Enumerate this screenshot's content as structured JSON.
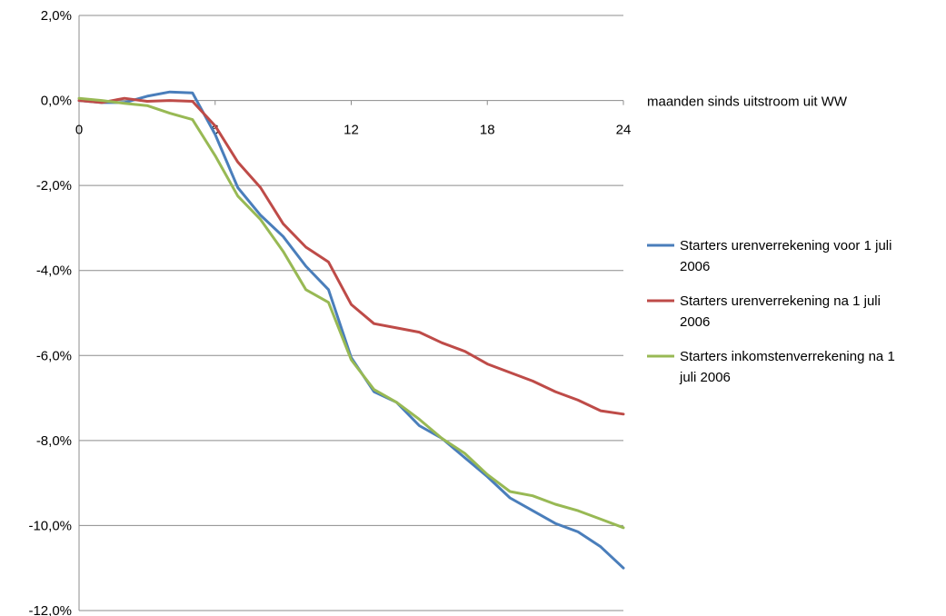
{
  "chart_data": {
    "type": "line",
    "xlabel": "maanden sinds uitstroom uit WW",
    "ylabel": "",
    "xlim": [
      0,
      24
    ],
    "ylim": [
      -12,
      2
    ],
    "x_ticks": [
      "0",
      "6",
      "12",
      "18",
      "24"
    ],
    "y_ticks": [
      "2,0%",
      "0,0%",
      "-2,0%",
      "-4,0%",
      "-6,0%",
      "-8,0%",
      "-10,0%",
      "-12,0%"
    ],
    "grid": true,
    "legend_position": "right",
    "x": [
      0,
      1,
      2,
      3,
      4,
      5,
      6,
      7,
      8,
      9,
      10,
      11,
      12,
      13,
      14,
      15,
      16,
      17,
      18,
      19,
      20,
      21,
      22,
      23,
      24
    ],
    "series": [
      {
        "name": "Starters urenverrekening voor 1 juli 2006",
        "legend_lines": [
          "Starters urenverrekening voor 1 juli",
          "2006"
        ],
        "color": "#4a7ebb",
        "values": [
          0.0,
          -0.05,
          -0.05,
          0.1,
          0.2,
          0.18,
          -0.8,
          -2.05,
          -2.7,
          -3.2,
          -3.9,
          -4.45,
          -6.05,
          -6.85,
          -7.1,
          -7.65,
          -7.95,
          -8.4,
          -8.85,
          -9.35,
          -9.65,
          -9.95,
          -10.15,
          -10.5,
          -11.0
        ]
      },
      {
        "name": "Starters urenverrekening na 1 juli 2006",
        "legend_lines": [
          "Starters urenverrekening na 1 juli",
          "2006"
        ],
        "color": "#be4b48",
        "values": [
          0.0,
          -0.05,
          0.05,
          -0.02,
          0.0,
          -0.02,
          -0.6,
          -1.45,
          -2.05,
          -2.9,
          -3.45,
          -3.8,
          -4.8,
          -5.25,
          -5.35,
          -5.45,
          -5.7,
          -5.9,
          -6.2,
          -6.4,
          -6.6,
          -6.85,
          -7.05,
          -7.3,
          -7.38
        ]
      },
      {
        "name": "Starters inkomstenverrekening na 1 juli 2006",
        "legend_lines": [
          "Starters inkomstenverrekening na 1",
          "juli 2006"
        ],
        "color": "#98b954",
        "values": [
          0.05,
          0.0,
          -0.07,
          -0.12,
          -0.3,
          -0.45,
          -1.3,
          -2.25,
          -2.8,
          -3.55,
          -4.45,
          -4.75,
          -6.1,
          -6.8,
          -7.1,
          -7.5,
          -7.95,
          -8.3,
          -8.8,
          -9.2,
          -9.3,
          -9.5,
          -9.65,
          -9.85,
          -10.05
        ]
      }
    ]
  }
}
